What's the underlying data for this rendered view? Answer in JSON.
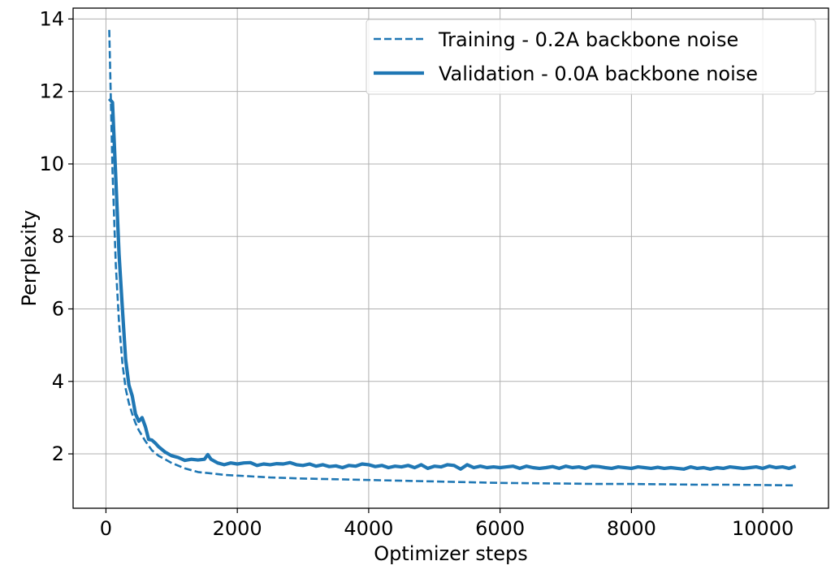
{
  "chart_data": {
    "type": "line",
    "title": "",
    "xlabel": "Optimizer steps",
    "ylabel": "Perplexity",
    "xlim": [
      -500,
      11000
    ],
    "ylim": [
      0.5,
      14.3
    ],
    "xticks": [
      0,
      2000,
      4000,
      6000,
      8000,
      10000
    ],
    "yticks": [
      2,
      4,
      6,
      8,
      10,
      12,
      14
    ],
    "grid": true,
    "legend_position": "top-right",
    "series": [
      {
        "name": "Training - 0.2A backbone noise",
        "style": "dashed",
        "color": "#1f77b4",
        "x": [
          50,
          100,
          150,
          200,
          250,
          300,
          350,
          400,
          450,
          500,
          600,
          700,
          800,
          900,
          1000,
          1200,
          1400,
          1600,
          1800,
          2000,
          2500,
          3000,
          3500,
          4000,
          4500,
          5000,
          5500,
          6000,
          6500,
          7000,
          7500,
          8000,
          8500,
          9000,
          9500,
          10000,
          10500
        ],
        "y": [
          13.7,
          9.8,
          7.2,
          5.6,
          4.5,
          3.8,
          3.4,
          3.1,
          2.85,
          2.65,
          2.35,
          2.1,
          1.95,
          1.85,
          1.75,
          1.6,
          1.5,
          1.46,
          1.42,
          1.4,
          1.35,
          1.32,
          1.3,
          1.28,
          1.26,
          1.24,
          1.22,
          1.2,
          1.19,
          1.18,
          1.17,
          1.17,
          1.16,
          1.15,
          1.15,
          1.14,
          1.13
        ]
      },
      {
        "name": "Validation - 0.0A backbone noise",
        "style": "solid",
        "color": "#1f77b4",
        "x": [
          50,
          100,
          150,
          200,
          250,
          300,
          350,
          400,
          450,
          500,
          550,
          600,
          650,
          700,
          750,
          800,
          900,
          1000,
          1100,
          1200,
          1300,
          1400,
          1500,
          1550,
          1600,
          1700,
          1800,
          1900,
          2000,
          2100,
          2200,
          2300,
          2400,
          2500,
          2600,
          2700,
          2800,
          2900,
          3000,
          3100,
          3200,
          3300,
          3400,
          3500,
          3600,
          3700,
          3800,
          3900,
          4000,
          4100,
          4200,
          4300,
          4400,
          4500,
          4600,
          4700,
          4800,
          4900,
          5000,
          5100,
          5200,
          5300,
          5400,
          5500,
          5600,
          5700,
          5800,
          5900,
          6000,
          6100,
          6200,
          6300,
          6400,
          6500,
          6600,
          6700,
          6800,
          6900,
          7000,
          7100,
          7200,
          7300,
          7400,
          7500,
          7600,
          7700,
          7800,
          7900,
          8000,
          8100,
          8200,
          8300,
          8400,
          8500,
          8600,
          8700,
          8800,
          8900,
          9000,
          9100,
          9200,
          9300,
          9400,
          9500,
          9600,
          9700,
          9800,
          9900,
          10000,
          10100,
          10200,
          10300,
          10400,
          10500
        ],
        "y": [
          11.8,
          11.7,
          9.6,
          7.5,
          6.0,
          4.6,
          3.9,
          3.6,
          3.1,
          2.9,
          3.0,
          2.75,
          2.4,
          2.38,
          2.3,
          2.2,
          2.05,
          1.95,
          1.9,
          1.82,
          1.85,
          1.83,
          1.85,
          1.98,
          1.85,
          1.75,
          1.7,
          1.75,
          1.72,
          1.75,
          1.76,
          1.68,
          1.72,
          1.7,
          1.73,
          1.72,
          1.76,
          1.7,
          1.68,
          1.72,
          1.66,
          1.7,
          1.65,
          1.67,
          1.62,
          1.68,
          1.66,
          1.72,
          1.7,
          1.65,
          1.68,
          1.62,
          1.66,
          1.64,
          1.68,
          1.62,
          1.7,
          1.6,
          1.66,
          1.64,
          1.7,
          1.68,
          1.58,
          1.7,
          1.62,
          1.66,
          1.62,
          1.64,
          1.62,
          1.64,
          1.66,
          1.6,
          1.66,
          1.62,
          1.6,
          1.62,
          1.65,
          1.6,
          1.66,
          1.62,
          1.64,
          1.6,
          1.66,
          1.65,
          1.62,
          1.6,
          1.64,
          1.62,
          1.6,
          1.64,
          1.62,
          1.6,
          1.63,
          1.6,
          1.62,
          1.6,
          1.58,
          1.64,
          1.6,
          1.62,
          1.58,
          1.62,
          1.6,
          1.64,
          1.62,
          1.6,
          1.62,
          1.64,
          1.6,
          1.66,
          1.62,
          1.64,
          1.6,
          1.66
        ]
      }
    ]
  }
}
